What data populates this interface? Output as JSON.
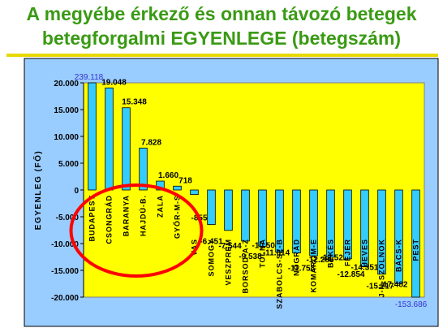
{
  "title_line1": "A megyébe érkező és onnan távozó betegek",
  "title_line2": "betegforgalmi EGYENLEGE (betegszám)",
  "chart_data": {
    "type": "bar",
    "ylabel": "EGYENLEG (FŐ)",
    "ylim": [
      -20000,
      20000
    ],
    "yticks": [
      20000,
      15000,
      10000,
      5000,
      0,
      -5000,
      -10000,
      -15000,
      -20000
    ],
    "ytick_labels": [
      "20.000",
      "15.000",
      "10.000",
      "5.000",
      "0",
      "-5.000",
      "-10.000",
      "-15.000",
      "-20.000"
    ],
    "categories": [
      "BUDAPEST",
      "CSONGRÁD",
      "BARANYA",
      "HAJDÚ-B.",
      "ZALA",
      "GYŐR-M-S",
      "VAS",
      "SOMOGY",
      "VESZPRÉM",
      "BORSOD-A-Z",
      "TOLNA",
      "SZABOLCS-SZ-B",
      "NÓGRÁD",
      "KOMÁROM-E",
      "BÉKÉS",
      "FEJÉR",
      "HEVES",
      "J-N-SZOLNOK",
      "BÁCS-K",
      "PEST"
    ],
    "values": [
      239118,
      19048,
      15348,
      7828,
      1660,
      718,
      -855,
      -6451,
      -7544,
      -9538,
      -10504,
      -11614,
      -11758,
      -12285,
      -12522,
      -12854,
      -14351,
      -15717,
      -17482,
      -153686
    ],
    "value_labels": [
      "239.118",
      "19.048",
      "15.348",
      "7.828",
      "1.660",
      "718",
      "-855",
      "-6.451",
      "-7.544",
      "-9.538",
      "-10.504",
      "-11.614",
      "-11.758",
      "-12.285",
      "-12.522",
      "-12.854",
      "-14.351",
      "-15.717",
      "-17.482",
      "-153.686"
    ],
    "grid": false,
    "colors": {
      "plot_bg": "#ffff00",
      "outer_bg": "#99ccff",
      "bar": "#33ccff",
      "bar_stroke": "#000000",
      "highlight_label": "#3333cc",
      "ellipse": "#ff0000",
      "title": "#3a9a14",
      "rule": "#e8d800"
    }
  }
}
